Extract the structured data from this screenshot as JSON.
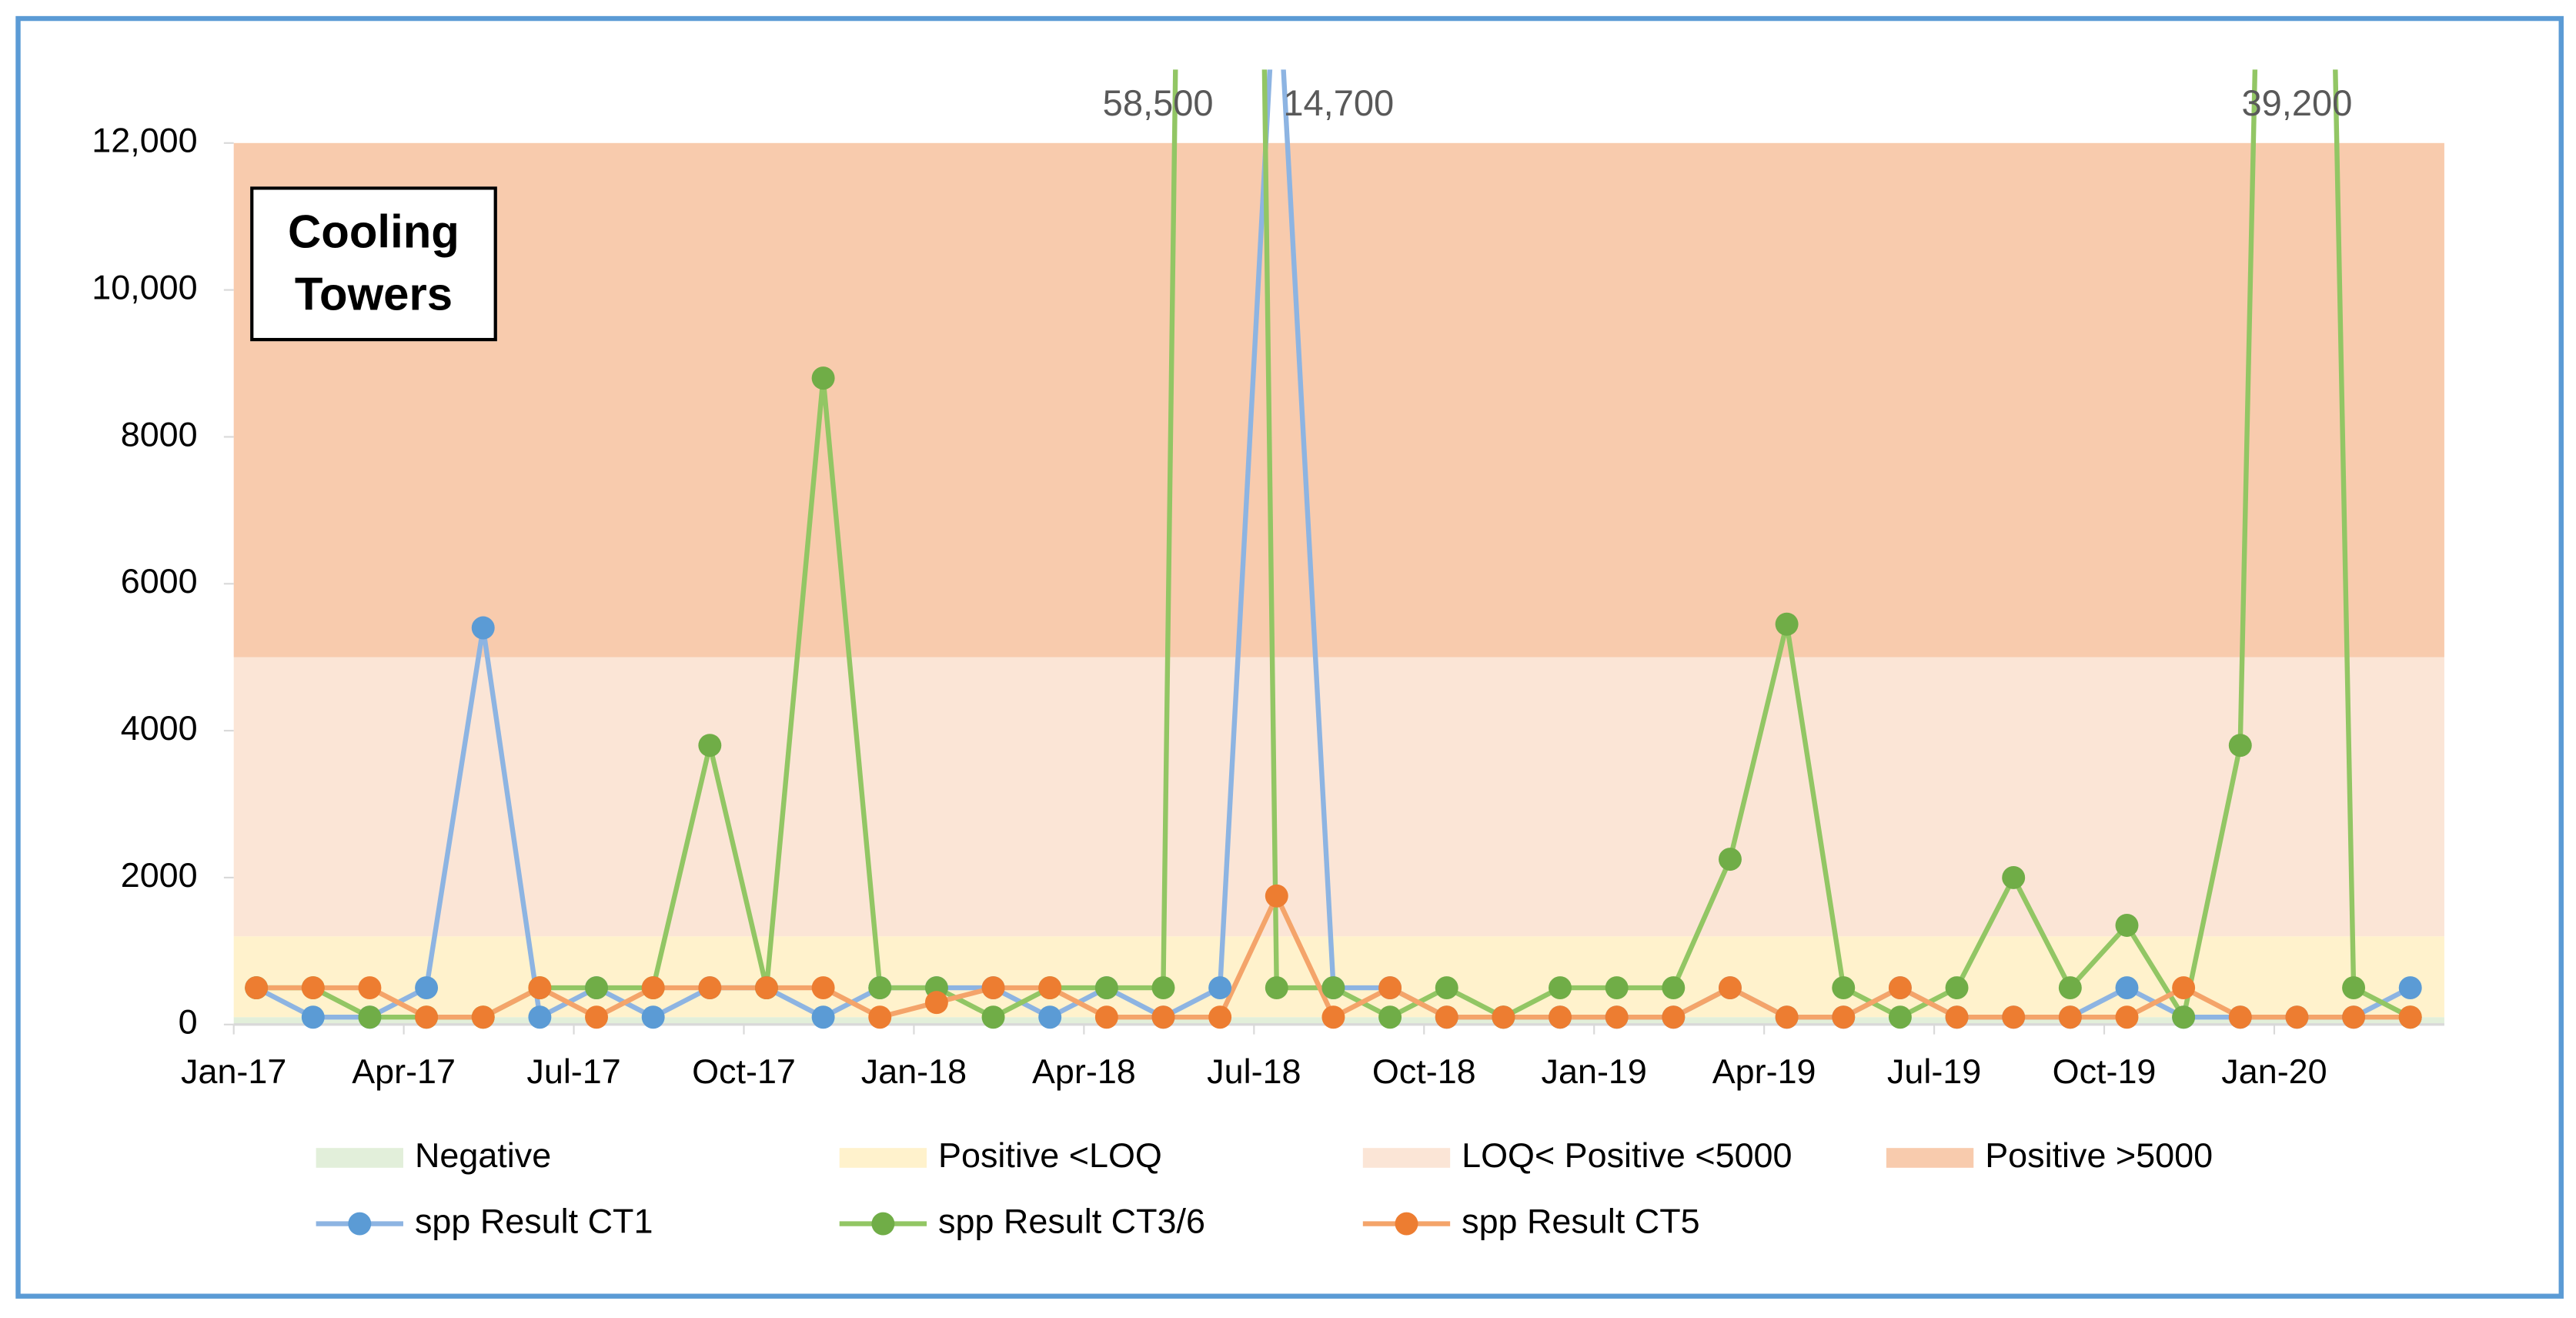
{
  "chart_data": {
    "type": "line",
    "title": "Cooling Towers",
    "x": [
      0.4,
      1.4,
      2.4,
      3.4,
      4.4,
      5.4,
      6.4,
      7.4,
      8.4,
      9.4,
      10.4,
      11.4,
      12.4,
      13.4,
      14.4,
      15.4,
      16.4,
      17.4,
      18.4,
      19.4,
      20.4,
      21.4,
      22.4,
      23.4,
      24.4,
      25.4,
      26.4,
      27.4,
      28.4,
      29.4,
      30.4,
      31.4,
      32.4,
      33.4,
      34.4,
      35.4,
      36.4,
      37.4,
      38.4
    ],
    "xlim": [
      0,
      39
    ],
    "xticks": [
      {
        "value": 0,
        "label": "Jan-17"
      },
      {
        "value": 3,
        "label": "Apr-17"
      },
      {
        "value": 6,
        "label": "Jul-17"
      },
      {
        "value": 9,
        "label": "Oct-17"
      },
      {
        "value": 12,
        "label": "Jan-18"
      },
      {
        "value": 15,
        "label": "Apr-18"
      },
      {
        "value": 18,
        "label": "Jul-18"
      },
      {
        "value": 21,
        "label": "Oct-18"
      },
      {
        "value": 24,
        "label": "Jan-19"
      },
      {
        "value": 27,
        "label": "Apr-19"
      },
      {
        "value": 30,
        "label": "Jul-19"
      },
      {
        "value": 33,
        "label": "Oct-19"
      },
      {
        "value": 36,
        "label": "Jan-20"
      }
    ],
    "ylim": [
      0,
      13000
    ],
    "yticks": [
      0,
      2000,
      4000,
      6000,
      8000,
      {
        "value": 10000,
        "label": "10,000"
      },
      {
        "value": 12000,
        "label": "12,000"
      }
    ],
    "bands": [
      {
        "name": "Negative",
        "color": "#e2efda",
        "range": [
          0,
          100
        ]
      },
      {
        "name": "Positive <LOQ",
        "color": "#fff2cc",
        "range": [
          100,
          1200
        ]
      },
      {
        "name": "LOQ< Positive <5000",
        "color": "#fbe5d6",
        "range": [
          1200,
          5000
        ]
      },
      {
        "name": "Positive >5000",
        "color": "#f8cbad",
        "range": [
          5000,
          12000
        ]
      }
    ],
    "series": [
      {
        "name": "spp Result CT1",
        "color": "#5b9bd5",
        "line_color": "#8db4e2",
        "values": [
          500,
          100,
          100,
          500,
          5400,
          100,
          500,
          100,
          500,
          500,
          100,
          500,
          500,
          500,
          100,
          500,
          100,
          500,
          14700,
          500,
          500,
          100,
          100,
          100,
          100,
          100,
          500,
          100,
          100,
          500,
          100,
          100,
          100,
          500,
          100,
          100,
          100,
          100,
          500
        ],
        "value_labels": [
          null,
          null,
          null,
          null,
          null,
          null,
          null,
          null,
          null,
          null,
          null,
          null,
          null,
          null,
          null,
          null,
          null,
          null,
          "14,700",
          null,
          null,
          null,
          null,
          null,
          null,
          null,
          null,
          null,
          null,
          null,
          null,
          null,
          null,
          null,
          null,
          null,
          null,
          null,
          null
        ]
      },
      {
        "name": "spp Result CT3/6",
        "color": "#70ad47",
        "line_color": "#92c664",
        "values": [
          500,
          500,
          100,
          100,
          100,
          500,
          500,
          500,
          3800,
          500,
          8800,
          500,
          500,
          100,
          500,
          500,
          500,
          58500,
          500,
          500,
          100,
          500,
          100,
          500,
          500,
          500,
          2250,
          5450,
          500,
          100,
          500,
          2000,
          500,
          1350,
          100,
          3800,
          39200,
          500,
          100
        ],
        "value_labels": [
          null,
          null,
          null,
          null,
          null,
          null,
          null,
          null,
          null,
          null,
          null,
          null,
          null,
          null,
          null,
          null,
          null,
          "58,500",
          null,
          null,
          null,
          null,
          null,
          null,
          null,
          null,
          null,
          null,
          null,
          null,
          null,
          null,
          null,
          null,
          null,
          null,
          "39,200",
          null,
          null
        ]
      },
      {
        "name": "spp Result CT5",
        "color": "#ed7d31",
        "line_color": "#f4a46a",
        "values": [
          500,
          500,
          500,
          100,
          100,
          500,
          100,
          500,
          500,
          500,
          500,
          100,
          300,
          500,
          500,
          100,
          100,
          100,
          1750,
          100,
          500,
          100,
          100,
          100,
          100,
          100,
          500,
          100,
          100,
          500,
          100,
          100,
          100,
          100,
          500,
          100,
          100,
          100,
          100
        ]
      }
    ]
  }
}
